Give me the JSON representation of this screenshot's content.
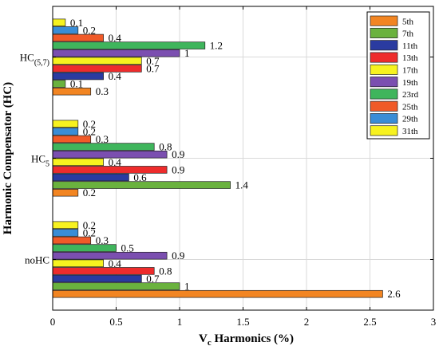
{
  "chart_data": {
    "type": "bar",
    "orientation": "horizontal",
    "xlabel_main": "V",
    "xlabel_sub": "c",
    "xlabel_rest": " Harmonics (%)",
    "ylabel": "Harmonic Compensator (HC)",
    "xlim": [
      0,
      3
    ],
    "xticks": [
      0,
      0.5,
      1,
      1.5,
      2,
      2.5,
      3
    ],
    "xtick_labels": [
      "0",
      "0.5",
      "1",
      "1.5",
      "2",
      "2.5",
      "3"
    ],
    "grid": true,
    "legend_position": "top-right",
    "groups": [
      {
        "label_main": "noHC",
        "label_sub": ""
      },
      {
        "label_main": "HC",
        "label_sub": "5"
      },
      {
        "label_main": "HC",
        "label_sub": "(5,7)"
      }
    ],
    "series": [
      {
        "name": "5th",
        "color": "#F28522",
        "values": [
          2.6,
          0.2,
          0.3
        ]
      },
      {
        "name": "7th",
        "color": "#6AB23E",
        "values": [
          1,
          1.4,
          0.1
        ]
      },
      {
        "name": "11th",
        "color": "#2A3BA0",
        "values": [
          0.7,
          0.6,
          0.4
        ]
      },
      {
        "name": "13th",
        "color": "#EE2C2C",
        "values": [
          0.8,
          0.9,
          0.7
        ]
      },
      {
        "name": "17th",
        "color": "#F7F21F",
        "values": [
          0.4,
          0.4,
          0.7
        ]
      },
      {
        "name": "19th",
        "color": "#7B4FB0",
        "values": [
          0.9,
          0.9,
          1
        ]
      },
      {
        "name": "23rd",
        "color": "#3FB55C",
        "values": [
          0.5,
          0.8,
          1.2
        ]
      },
      {
        "name": "25th",
        "color": "#F05A28",
        "values": [
          0.3,
          0.3,
          0.4
        ]
      },
      {
        "name": "29th",
        "color": "#3A8DD6",
        "values": [
          0.2,
          0.2,
          0.2
        ]
      },
      {
        "name": "31th",
        "color": "#F7F21F",
        "values": [
          0.2,
          0.2,
          0.1
        ]
      }
    ],
    "value_labels": [
      [
        "2.6",
        "0.2",
        "0.3"
      ],
      [
        "1",
        "1.4",
        "0.1"
      ],
      [
        "0.7",
        "0.6",
        "0.4"
      ],
      [
        "0.8",
        "0.9",
        "0.7"
      ],
      [
        "0.4",
        "0.4",
        "0.7"
      ],
      [
        "0.9",
        "0.9",
        "1"
      ],
      [
        "0.5",
        "0.8",
        "1.2"
      ],
      [
        "0.3",
        "0.3",
        "0.4"
      ],
      [
        "0.2",
        "0.2",
        "0.2"
      ],
      [
        "0.2",
        "0.2",
        "0.1"
      ]
    ]
  }
}
